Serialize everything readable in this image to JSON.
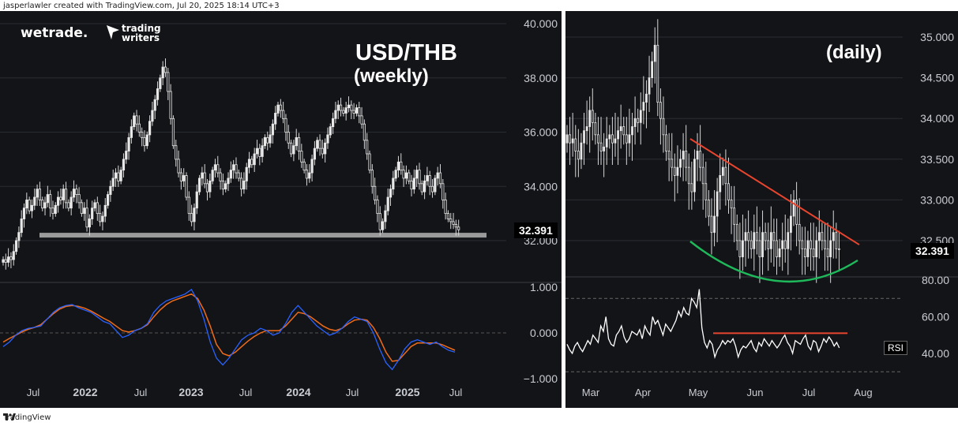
{
  "credit": "jasperlawler created with TradingView.com, Jul 20, 2025 18:14 UTC+3",
  "footer": "TradingView",
  "branding": {
    "wetrade": "wetrade.",
    "trading_writers_1": "trading",
    "trading_writers_2": "writers"
  },
  "chart_data": [
    {
      "type": "candlestick",
      "title": "USD/THB",
      "subtitle": "(weekly)",
      "ylim": [
        31.1,
        40.1
      ],
      "y_ticks": [
        "40.000",
        "38.000",
        "36.000",
        "34.000",
        "32.000"
      ],
      "x_ticks": [
        {
          "label": "Jul",
          "bold": false
        },
        {
          "label": "2022",
          "bold": true
        },
        {
          "label": "Jul",
          "bold": false
        },
        {
          "label": "2023",
          "bold": true
        },
        {
          "label": "Jul",
          "bold": false
        },
        {
          "label": "2024",
          "bold": true
        },
        {
          "label": "Jul",
          "bold": false
        },
        {
          "label": "2025",
          "bold": true
        },
        {
          "label": "Jul",
          "bold": false
        }
      ],
      "last_price": "32.391",
      "support_level": 32.2,
      "closes": [
        31.3,
        31.2,
        31.4,
        31.3,
        31.6,
        32.0,
        32.3,
        32.8,
        33.2,
        33.5,
        33.1,
        33.3,
        33.6,
        33.9,
        33.5,
        33.2,
        33.4,
        33.7,
        33.2,
        33.0,
        33.3,
        33.6,
        33.5,
        33.9,
        33.4,
        33.2,
        33.6,
        33.9,
        33.7,
        33.4,
        33.0,
        33.2,
        32.5,
        32.8,
        33.2,
        33.4,
        33.0,
        32.7,
        32.9,
        33.3,
        33.7,
        34.0,
        34.3,
        34.5,
        34.2,
        34.6,
        35.0,
        35.3,
        35.8,
        36.2,
        36.6,
        36.3,
        36.0,
        35.8,
        35.5,
        35.9,
        36.4,
        36.8,
        37.2,
        37.6,
        38.0,
        38.4,
        38.2,
        37.5,
        36.5,
        35.5,
        35.0,
        34.5,
        34.2,
        34.4,
        33.6,
        33.0,
        32.7,
        33.2,
        33.8,
        34.3,
        34.5,
        34.1,
        33.8,
        34.2,
        34.6,
        34.8,
        34.5,
        34.2,
        33.9,
        34.1,
        34.3,
        34.6,
        34.8,
        34.5,
        34.3,
        33.9,
        34.2,
        34.7,
        35.0,
        34.8,
        35.2,
        35.4,
        35.1,
        35.5,
        35.8,
        35.6,
        35.9,
        36.3,
        36.7,
        37.0,
        36.8,
        36.5,
        36.0,
        35.6,
        35.2,
        35.5,
        35.8,
        35.3,
        34.9,
        34.6,
        34.3,
        34.5,
        35.0,
        35.4,
        35.7,
        35.4,
        35.2,
        35.6,
        35.9,
        36.2,
        36.5,
        36.8,
        37.0,
        36.8,
        36.7,
        36.9,
        37.0,
        36.8,
        36.7,
        36.9,
        36.6,
        36.3,
        35.7,
        35.2,
        34.6,
        34.0,
        33.5,
        33.0,
        32.4,
        32.7,
        33.1,
        33.6,
        33.9,
        34.3,
        34.6,
        34.9,
        34.6,
        34.3,
        34.5,
        34.2,
        33.9,
        34.3,
        34.6,
        34.1,
        33.8,
        34.2,
        34.4,
        34.0,
        33.8,
        34.3,
        34.5,
        34.1,
        33.5,
        33.0,
        32.8,
        32.7,
        32.6,
        32.5,
        32.4
      ],
      "indicator": {
        "ylim": [
          -1.1,
          1.1
        ],
        "y_ticks": [
          "1.000",
          "0.000",
          "−1.000"
        ],
        "fast_color": "#2962ff",
        "slow_color": "#ef6c1a",
        "fast": [
          -0.3,
          -0.2,
          -0.05,
          0.05,
          0.1,
          0.12,
          0.15,
          0.3,
          0.45,
          0.55,
          0.6,
          0.62,
          0.55,
          0.5,
          0.45,
          0.35,
          0.25,
          0.2,
          0.05,
          -0.1,
          -0.05,
          0.05,
          0.1,
          0.2,
          0.45,
          0.6,
          0.7,
          0.75,
          0.8,
          0.85,
          0.95,
          0.7,
          0.3,
          -0.2,
          -0.55,
          -0.7,
          -0.55,
          -0.35,
          -0.15,
          -0.05,
          0.0,
          0.1,
          0.05,
          -0.05,
          0.0,
          0.2,
          0.45,
          0.6,
          0.45,
          0.3,
          0.15,
          0.05,
          -0.05,
          0.0,
          0.1,
          0.25,
          0.35,
          0.3,
          0.25,
          0.0,
          -0.35,
          -0.65,
          -0.8,
          -0.6,
          -0.35,
          -0.2,
          -0.15,
          -0.2,
          -0.25,
          -0.2,
          -0.3,
          -0.38,
          -0.42
        ],
        "slow": [
          -0.2,
          -0.12,
          -0.05,
          0.02,
          0.08,
          0.12,
          0.18,
          0.3,
          0.42,
          0.52,
          0.58,
          0.6,
          0.58,
          0.54,
          0.48,
          0.4,
          0.32,
          0.25,
          0.15,
          0.05,
          0.02,
          0.05,
          0.1,
          0.18,
          0.35,
          0.5,
          0.62,
          0.7,
          0.75,
          0.8,
          0.85,
          0.75,
          0.5,
          0.15,
          -0.25,
          -0.45,
          -0.5,
          -0.42,
          -0.3,
          -0.18,
          -0.08,
          0.0,
          0.05,
          0.05,
          0.05,
          0.15,
          0.3,
          0.45,
          0.42,
          0.35,
          0.25,
          0.15,
          0.08,
          0.05,
          0.1,
          0.2,
          0.28,
          0.3,
          0.28,
          0.12,
          -0.12,
          -0.42,
          -0.62,
          -0.6,
          -0.45,
          -0.3,
          -0.22,
          -0.22,
          -0.22,
          -0.22,
          -0.26,
          -0.32,
          -0.38
        ]
      }
    },
    {
      "type": "candlestick",
      "title": "(daily)",
      "ylim": [
        31.75,
        35.25
      ],
      "y_ticks": [
        "35.000",
        "34.500",
        "34.000",
        "33.500",
        "33.000",
        "32.500"
      ],
      "x_ticks": [
        {
          "label": "Mar",
          "bold": false
        },
        {
          "label": "Apr",
          "bold": false
        },
        {
          "label": "May",
          "bold": false
        },
        {
          "label": "Jun",
          "bold": false
        },
        {
          "label": "Jul",
          "bold": false
        },
        {
          "label": "Aug",
          "bold": false
        }
      ],
      "last_price": "32.391",
      "closes": [
        33.8,
        33.7,
        33.75,
        33.6,
        33.5,
        33.7,
        33.85,
        33.9,
        34.1,
        33.95,
        33.8,
        33.7,
        33.6,
        33.65,
        33.75,
        33.8,
        33.7,
        33.75,
        33.85,
        33.9,
        33.8,
        33.7,
        33.8,
        33.9,
        34.0,
        33.95,
        34.1,
        34.2,
        34.3,
        34.5,
        34.7,
        34.9,
        34.2,
        34.0,
        33.8,
        33.6,
        33.5,
        33.4,
        33.3,
        33.4,
        33.5,
        33.6,
        33.4,
        33.2,
        33.1,
        33.5,
        33.6,
        33.4,
        33.2,
        33.0,
        32.8,
        32.6,
        32.8,
        33.1,
        33.3,
        33.4,
        33.2,
        33.0,
        32.9,
        32.7,
        32.5,
        32.3,
        32.5,
        32.6,
        32.5,
        32.4,
        32.6,
        32.5,
        32.3,
        32.6,
        32.5,
        32.4,
        32.6,
        32.5,
        32.3,
        32.4,
        32.5,
        32.4,
        32.6,
        32.8,
        33.0,
        32.7,
        32.5,
        32.4,
        32.3,
        32.5,
        32.4,
        32.3,
        32.5,
        32.6,
        32.5,
        32.4,
        32.3,
        32.5,
        32.6,
        32.4,
        32.39
      ],
      "rsi": {
        "ylim": [
          25,
          85
        ],
        "y_ticks": [
          "80.00",
          "60.00",
          "40.00"
        ],
        "label": "RSI",
        "color": "#ffffff",
        "values": [
          45,
          42,
          40,
          44,
          46,
          43,
          41,
          44,
          47,
          45,
          50,
          48,
          46,
          55,
          52,
          60,
          48,
          45,
          44,
          50,
          52,
          55,
          49,
          46,
          48,
          52,
          51,
          50,
          53,
          48,
          55,
          52,
          50,
          60,
          56,
          58,
          54,
          50,
          56,
          54,
          52,
          55,
          58,
          63,
          60,
          65,
          62,
          61,
          70,
          68,
          65,
          75,
          54,
          46,
          43,
          47,
          45,
          38,
          42,
          44,
          47,
          45,
          47,
          46,
          48,
          44,
          38,
          42,
          44,
          43,
          45,
          47,
          43,
          41,
          46,
          44,
          48,
          46,
          44,
          47,
          45,
          43,
          45,
          48,
          50,
          46,
          44,
          40,
          47,
          46,
          45,
          48,
          50,
          44,
          42,
          47,
          46,
          41,
          44,
          48,
          46,
          49,
          47,
          44,
          46,
          43
        ]
      }
    }
  ]
}
